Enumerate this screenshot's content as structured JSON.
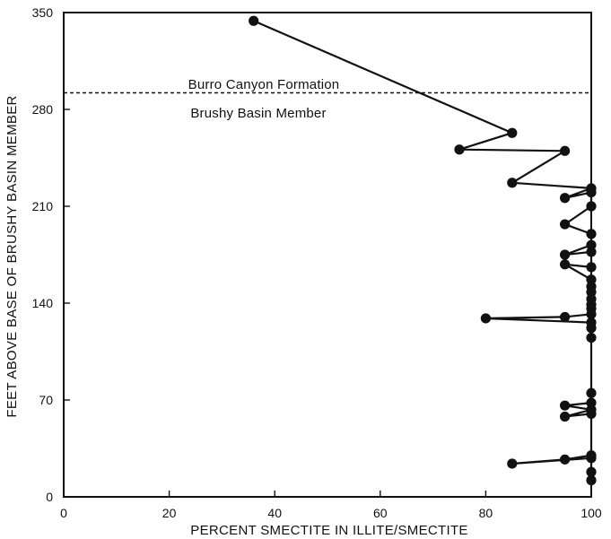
{
  "chart_data": {
    "type": "line",
    "title": "",
    "xlabel": "PERCENT SMECTITE IN ILLITE/SMECTITE",
    "ylabel": "FEET ABOVE BASE OF BRUSHY BASIN MEMBER",
    "xlim": [
      0,
      100
    ],
    "ylim": [
      0,
      350
    ],
    "xticks": [
      0,
      20,
      40,
      60,
      80,
      100
    ],
    "yticks": [
      0,
      70,
      140,
      210,
      280,
      350
    ],
    "grid": false,
    "legend": "none",
    "boundary": {
      "y": 292,
      "style": "dashed",
      "upper_label": "Burro Canyon Formation",
      "lower_label": "Brushy Basin Member"
    },
    "series": [
      {
        "marker": "filled-circle",
        "color": "#111111",
        "points": [
          {
            "x": 36,
            "y": 344
          },
          {
            "x": 85,
            "y": 263
          },
          {
            "x": 75,
            "y": 251
          },
          {
            "x": 95,
            "y": 250
          },
          {
            "x": 85,
            "y": 227
          },
          {
            "x": 100,
            "y": 223
          },
          {
            "x": 95,
            "y": 216
          },
          {
            "x": 100,
            "y": 220
          },
          {
            "x": 100,
            "y": 210
          },
          {
            "x": 95,
            "y": 197
          },
          {
            "x": 100,
            "y": 190
          },
          {
            "x": 100,
            "y": 182
          },
          {
            "x": 95,
            "y": 175
          },
          {
            "x": 100,
            "y": 177
          },
          {
            "x": 100,
            "y": 166
          },
          {
            "x": 95,
            "y": 168
          },
          {
            "x": 100,
            "y": 157
          },
          {
            "x": 100,
            "y": 152
          },
          {
            "x": 100,
            "y": 148
          },
          {
            "x": 100,
            "y": 143
          },
          {
            "x": 100,
            "y": 139
          },
          {
            "x": 100,
            "y": 136
          },
          {
            "x": 100,
            "y": 132
          },
          {
            "x": 95,
            "y": 130
          },
          {
            "x": 80,
            "y": 129
          },
          {
            "x": 100,
            "y": 126
          },
          {
            "x": 100,
            "y": 122
          },
          {
            "x": 100,
            "y": 115
          },
          {
            "x": 100,
            "y": 75
          },
          {
            "x": 100,
            "y": 68
          },
          {
            "x": 95,
            "y": 66
          },
          {
            "x": 100,
            "y": 63
          },
          {
            "x": 95,
            "y": 58
          },
          {
            "x": 100,
            "y": 60
          },
          {
            "x": 100,
            "y": 30
          },
          {
            "x": 95,
            "y": 27
          },
          {
            "x": 85,
            "y": 24
          },
          {
            "x": 100,
            "y": 28
          },
          {
            "x": 100,
            "y": 18
          },
          {
            "x": 100,
            "y": 12
          }
        ]
      }
    ]
  }
}
